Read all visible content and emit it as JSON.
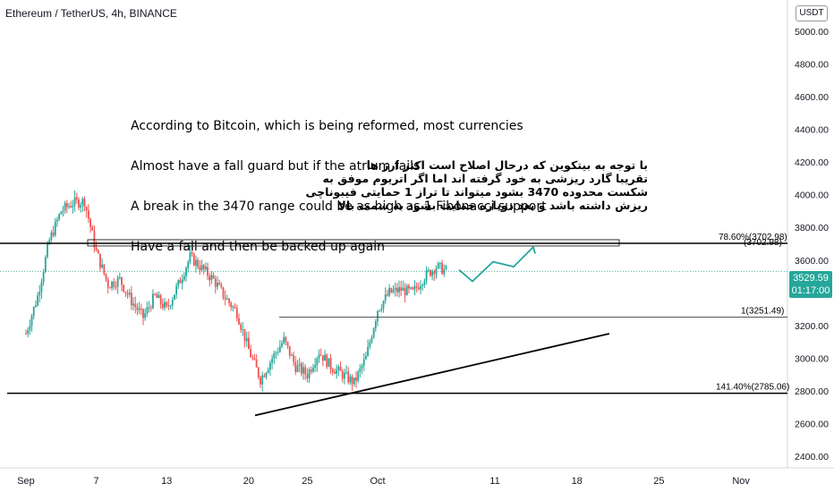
{
  "header": {
    "symbol": "Ethereum / TetherUS, 4h, BINANCE"
  },
  "currency_button": "USDT",
  "price_badge": {
    "price": "3529.59",
    "countdown": "01:17:00"
  },
  "notes_en": [
    "According to Bitcoin, which is being reformed, most currencies",
    "Almost have a fall guard but if the atrium fails",
    "A break in the 3470 range could be as high as 1 Fibonacci support",
    "Have a fall and then be backed up again"
  ],
  "notes_fa": [
    "با توجه به بیتکوین که درحال اصلاح است اکثر ارز ها",
    "تقریبا گارد ریزشی به خود گرفته اند اما اگر اتریوم موفق به",
    "شکست محدوده 3470 بشود میتواند تا تراز 1 حمایتی فیبوناچی",
    "ریزش داشته باشد و بعد دوباره حمایت بشود به سمت بالا"
  ],
  "colors": {
    "up": "#26a69a",
    "down": "#ef5350",
    "projection": "#26a69a",
    "line": "#000000",
    "axis_text": "#131722"
  },
  "chart_data": {
    "type": "candlestick",
    "title": "Ethereum / TetherUS, 4h, BINANCE",
    "y_axis": {
      "ticks": [
        2400,
        2600,
        2800,
        3000,
        3200,
        3400,
        3600,
        3800,
        4000,
        4200,
        4400,
        4600,
        4800,
        5000
      ],
      "range": [
        2320,
        5180
      ]
    },
    "x_axis": {
      "ticks": [
        "Sep",
        "7",
        "13",
        "20",
        "25",
        "Oct",
        "11",
        "18",
        "25",
        "Nov"
      ]
    },
    "series_points": [
      [
        "Sep 1",
        3150
      ],
      [
        "Sep 2",
        3380
      ],
      [
        "Sep 3",
        3720
      ],
      [
        "Sep 4",
        3900
      ],
      [
        "Sep 5",
        3950
      ],
      [
        "Sep 6",
        3960
      ],
      [
        "Sep 7",
        3650
      ],
      [
        "Sep 8",
        3450
      ],
      [
        "Sep 9",
        3480
      ],
      [
        "Sep 10",
        3350
      ],
      [
        "Sep 11",
        3250
      ],
      [
        "Sep 12",
        3380
      ],
      [
        "Sep 13",
        3300
      ],
      [
        "Sep 14",
        3450
      ],
      [
        "Sep 15",
        3620
      ],
      [
        "Sep 16",
        3550
      ],
      [
        "Sep 17",
        3480
      ],
      [
        "Sep 18",
        3370
      ],
      [
        "Sep 19",
        3280
      ],
      [
        "Sep 20",
        3050
      ],
      [
        "Sep 21",
        2870
      ],
      [
        "Sep 22",
        3000
      ],
      [
        "Sep 23",
        3110
      ],
      [
        "Sep 24",
        2950
      ],
      [
        "Sep 25",
        2900
      ],
      [
        "Sep 26",
        3040
      ],
      [
        "Sep 27",
        2950
      ],
      [
        "Sep 28",
        2900
      ],
      [
        "Sep 29",
        2850
      ],
      [
        "Sep 30",
        3000
      ],
      [
        "Oct 1",
        3300
      ],
      [
        "Oct 2",
        3400
      ],
      [
        "Oct 3",
        3420
      ],
      [
        "Oct 4",
        3400
      ],
      [
        "Oct 5",
        3500
      ],
      [
        "Oct 6",
        3560
      ],
      [
        "Oct 7",
        3530
      ]
    ],
    "levels": [
      {
        "label": "78.60%(3702.98)",
        "value": 3702.98
      },
      {
        "label": "1(3251.49)",
        "value": 3251.49
      },
      {
        "label": "141.40%(2785.06)",
        "value": 2785.06
      }
    ],
    "extra_label": "(3702.98)",
    "current_price": 3529.59,
    "projection": [
      [
        "Oct 7",
        3540
      ],
      [
        "Oct 8",
        3470
      ],
      [
        "Oct 10",
        3590
      ],
      [
        "Oct 12",
        3560
      ],
      [
        "Oct 14",
        3680
      ],
      [
        "Oct 14",
        3640
      ]
    ],
    "trendline": [
      [
        "Sep 21",
        2650
      ],
      [
        "Oct 20",
        3150
      ]
    ]
  }
}
